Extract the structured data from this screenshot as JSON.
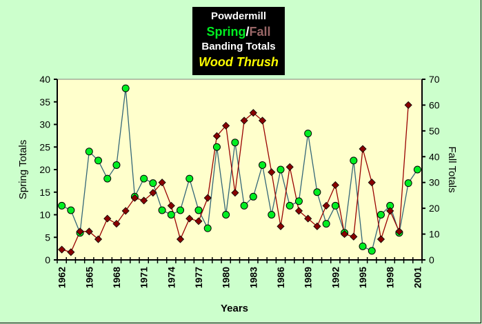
{
  "title": {
    "line1": "Powdermill",
    "spring_word": "Spring",
    "slash": "/",
    "fall_word": "Fall",
    "line3": "Banding Totals",
    "species": "Wood Thrush"
  },
  "colors": {
    "spring_marker": "#00ee22",
    "spring_line": "#336677",
    "fall_marker": "#880000",
    "fall_line": "#990000",
    "plot_bg": "#ffffcc",
    "page_bg": "#ccffcc",
    "spring_title": "#00ee22",
    "fall_title": "#996666"
  },
  "chart_data": {
    "type": "line",
    "xlabel": "Years",
    "ylabel": "Spring Totals",
    "y2label": "Fall Totals",
    "ylim": [
      0,
      40
    ],
    "y2lim": [
      0,
      70
    ],
    "yticks": [
      0,
      5,
      10,
      15,
      20,
      25,
      30,
      35,
      40
    ],
    "y2ticks": [
      0,
      10,
      20,
      30,
      40,
      50,
      60,
      70
    ],
    "xtick_labels": [
      "1962",
      "1965",
      "1968",
      "1971",
      "1974",
      "1977",
      "1980",
      "1983",
      "1986",
      "1989",
      "1992",
      "1995",
      "1998",
      "2001"
    ],
    "x": [
      1962,
      1963,
      1964,
      1965,
      1966,
      1967,
      1968,
      1969,
      1970,
      1971,
      1972,
      1973,
      1974,
      1975,
      1976,
      1977,
      1978,
      1979,
      1980,
      1981,
      1982,
      1983,
      1984,
      1985,
      1986,
      1987,
      1988,
      1989,
      1990,
      1991,
      1992,
      1993,
      1994,
      1995,
      1996,
      1997,
      1998,
      1999,
      2000,
      2001
    ],
    "series": [
      {
        "name": "Spring",
        "axis": "left",
        "marker": "circle",
        "values": [
          12,
          11,
          6,
          24,
          22,
          18,
          21,
          38,
          14,
          18,
          17,
          11,
          10,
          11,
          18,
          11,
          7,
          25,
          10,
          26,
          12,
          14,
          21,
          10,
          20,
          12,
          13,
          28,
          15,
          8,
          12,
          6,
          22,
          3,
          2,
          10,
          12,
          6,
          17,
          20
        ]
      },
      {
        "name": "Fall",
        "axis": "right",
        "marker": "diamond",
        "values": [
          4,
          3,
          11,
          11,
          8,
          16,
          14,
          19,
          24,
          23,
          26,
          30,
          21,
          8,
          16,
          15,
          24,
          48,
          52,
          26,
          54,
          57,
          54,
          34,
          13,
          36,
          19,
          16,
          13,
          21,
          29,
          10,
          9,
          43,
          30,
          8,
          19,
          11,
          60,
          null
        ]
      }
    ]
  }
}
